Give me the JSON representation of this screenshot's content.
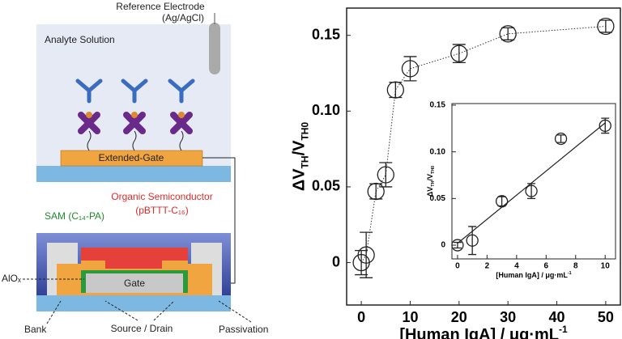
{
  "diagram": {
    "reference_electrode": [
      "Reference Electrode",
      "(Ag/AgCl)"
    ],
    "analyte": "Analyte Solution",
    "extended_gate": "Extended-Gate",
    "semiconductor": [
      "Organic Semiconductor",
      "(pBTTT-C₁₆)"
    ],
    "sam": "SAM (C₁₄-PA)",
    "gate": "Gate",
    "alox": "AlOₓ",
    "bank": "Bank",
    "source_drain": "Source / Drain",
    "passivation": "Passivation"
  },
  "chart_data": [
    {
      "type": "scatter",
      "x": [
        0,
        1,
        3,
        5,
        7,
        10,
        20,
        30,
        50
      ],
      "values": [
        0.0,
        0.005,
        0.047,
        0.058,
        0.114,
        0.128,
        0.138,
        0.151,
        0.156
      ],
      "errors": [
        0.008,
        0.015,
        0.005,
        0.008,
        0.005,
        0.008,
        0.006,
        0.004,
        0.004
      ],
      "xlim": [
        -3,
        53
      ],
      "ylim": [
        -0.028,
        0.168
      ],
      "xticks": [
        0,
        10,
        20,
        30,
        40,
        50
      ],
      "yticks": [
        0,
        0.05,
        {
          "value": 0.1,
          "label": "0.10"
        },
        0.15
      ],
      "connect": "dotted",
      "x_label": [
        {
          "text": "[Human IgA] / μg·mL"
        },
        {
          "text": "-1",
          "sup": true
        }
      ],
      "y_label": [
        {
          "text": "ΔV"
        },
        {
          "text": "TH",
          "sub": true
        },
        {
          "text": "/V"
        },
        {
          "text": "TH0",
          "sub": true
        }
      ]
    },
    {
      "type": "scatter",
      "x": [
        0,
        1,
        3,
        5,
        7,
        10
      ],
      "values": [
        0.0,
        0.005,
        0.047,
        0.058,
        0.114,
        0.128
      ],
      "errors": [
        0.003,
        0.015,
        0.005,
        0.008,
        0.004,
        0.008
      ],
      "xlim": [
        -0.38,
        10.7
      ],
      "ylim": [
        -0.0147,
        0.1517
      ],
      "xticks": [
        0,
        2,
        4,
        6,
        8,
        10
      ],
      "yticks": [
        0,
        0.05,
        {
          "value": 0.1,
          "label": "0.10"
        },
        0.15
      ],
      "fit": {
        "x": [
          0,
          10
        ],
        "y": [
          0.002,
          0.131
        ]
      },
      "x_label": [
        {
          "text": "[Human IgA] / μg·mL"
        },
        {
          "text": "-1",
          "sup": true
        }
      ],
      "y_label": [
        {
          "text": "ΔV"
        },
        {
          "text": "TH",
          "sub": true
        },
        {
          "text": "/V"
        },
        {
          "text": "TH0",
          "sub": true
        }
      ]
    }
  ]
}
